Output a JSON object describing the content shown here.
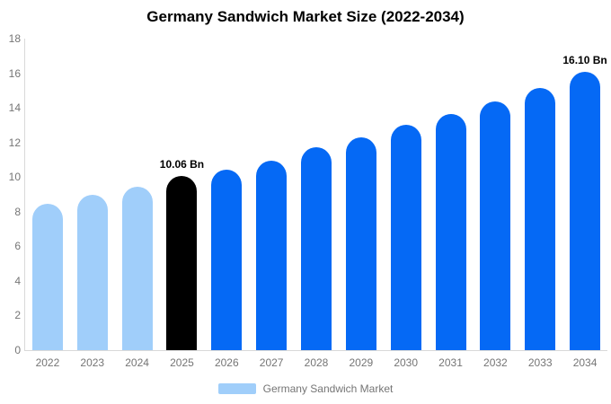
{
  "chart_data": {
    "type": "bar",
    "title": "Germany Sandwich Market Size (2022-2034)",
    "categories": [
      "2022",
      "2023",
      "2024",
      "2025",
      "2026",
      "2027",
      "2028",
      "2029",
      "2030",
      "2031",
      "2032",
      "2033",
      "2034"
    ],
    "values": [
      8.45,
      8.98,
      9.45,
      10.06,
      10.45,
      10.95,
      11.7,
      12.3,
      13.0,
      13.65,
      14.35,
      15.15,
      16.1
    ],
    "unit": "Bn",
    "xlabel": "",
    "ylabel": "",
    "ylim": [
      0,
      18
    ],
    "y_ticks": [
      0,
      2,
      4,
      6,
      8,
      10,
      12,
      14,
      16,
      18
    ],
    "grid": false,
    "bar_colors": [
      "#A0CEFA",
      "#A0CEFA",
      "#A0CEFA",
      "#000000",
      "#0569F5",
      "#0569F5",
      "#0569F5",
      "#0569F5",
      "#0569F5",
      "#0569F5",
      "#0569F5",
      "#0569F5",
      "#0569F5"
    ],
    "bar_labels": [
      "",
      "",
      "",
      "10.06 Bn",
      "",
      "",
      "",
      "",
      "",
      "",
      "",
      "",
      "16.10 Bn"
    ],
    "legend": {
      "label": "Germany Sandwich Market",
      "position": "bottom",
      "swatch_color": "#A0CEFA"
    },
    "colors": {
      "historical": "#A0CEFA",
      "base_year": "#000000",
      "forecast": "#0569F5",
      "axis_line": "#D9D9D9",
      "tick_text": "#757575",
      "title_text": "#000000",
      "background": "#FFFFFF"
    }
  }
}
